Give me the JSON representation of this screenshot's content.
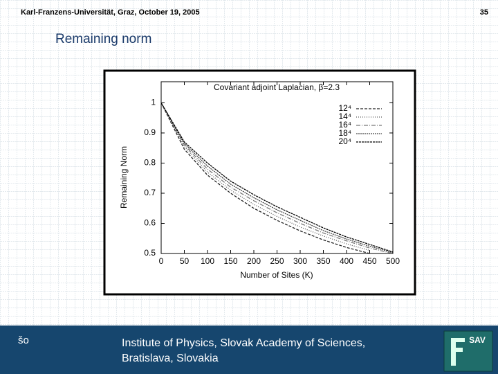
{
  "header": {
    "event": "Karl-Franzens-Universität, Graz, October 19, 2005",
    "page": "35",
    "title": "Remaining norm"
  },
  "footer": {
    "left": "šo",
    "lines": [
      "Institute of Physics, Slovak Academy of Sciences,",
      "Bratislava, Slovakia"
    ],
    "logo": "SAV"
  },
  "chart_data": {
    "type": "line",
    "title": "Covariant adjoint Laplacian, β=2.3",
    "x_label": "Number of Sites (K)",
    "y_label": "Remaining Norm",
    "x": [
      0,
      50,
      100,
      150,
      200,
      250,
      300,
      350,
      400,
      450,
      500
    ],
    "series": [
      {
        "name": "12⁴",
        "color": "#222222",
        "dash": "4 2",
        "values": [
          1,
          0.846,
          0.76,
          0.7,
          0.65,
          0.61,
          0.575,
          0.545,
          0.52,
          0.5,
          null
        ]
      },
      {
        "name": "14⁴",
        "color": "#555555",
        "dash": "1 2",
        "values": [
          1,
          0.855,
          0.77,
          0.71,
          0.663,
          0.623,
          0.588,
          0.558,
          0.532,
          0.51,
          null
        ]
      },
      {
        "name": "16⁴",
        "color": "#777777",
        "dash": "6 2 1 2",
        "values": [
          1,
          0.86,
          0.78,
          0.72,
          0.675,
          0.635,
          0.6,
          0.568,
          0.542,
          0.518,
          0.5
        ]
      },
      {
        "name": "18⁴",
        "color": "#444444",
        "dash": "2 1",
        "values": [
          1,
          0.865,
          0.79,
          0.73,
          0.685,
          0.645,
          0.61,
          0.576,
          0.548,
          0.524,
          0.503
        ]
      },
      {
        "name": "20⁴",
        "color": "#000000",
        "dash": "3 1",
        "values": [
          1,
          0.87,
          0.8,
          0.74,
          0.695,
          0.655,
          0.62,
          0.585,
          0.555,
          0.53,
          0.505
        ]
      }
    ],
    "xlim": [
      0,
      500
    ],
    "ylim": [
      0.5,
      1.07
    ],
    "xticks": [
      0,
      50,
      100,
      150,
      200,
      250,
      300,
      350,
      400,
      450,
      500
    ],
    "yticks": [
      0.5,
      0.6,
      0.7,
      0.8,
      0.9,
      1
    ],
    "legend": "upper right"
  }
}
